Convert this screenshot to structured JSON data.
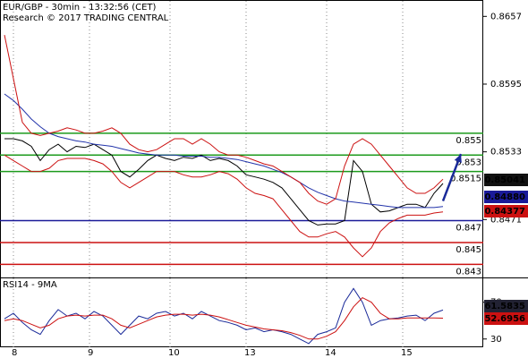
{
  "chart_data": [
    {
      "type": "line",
      "title": "EUR/GBP - 30min - 13:32:56 (CET)",
      "subtitle": "Research © 2017 TRADING CENTRAL",
      "x": [
        -2,
        0,
        2,
        4,
        6,
        8,
        10,
        12,
        14,
        16,
        18,
        20,
        22,
        24,
        26,
        28,
        30,
        32,
        34,
        36,
        38,
        40,
        42,
        44,
        46,
        48,
        50,
        52,
        54,
        56,
        58,
        60,
        62,
        64,
        66,
        68,
        70,
        72,
        74,
        76,
        78,
        80,
        82,
        84,
        86,
        88,
        90,
        92,
        94,
        96
      ],
      "xlim": [
        -3,
        105
      ],
      "xticks": [
        {
          "value": 0,
          "label": "8"
        },
        {
          "value": 17,
          "label": "9"
        },
        {
          "value": 35,
          "label": "10"
        },
        {
          "value": 52,
          "label": "13"
        },
        {
          "value": 70,
          "label": "14"
        },
        {
          "value": 87,
          "label": "15"
        }
      ],
      "ylim": [
        0.8418,
        0.8672
      ],
      "yticks": [
        0.8657,
        0.8595,
        0.8533,
        0.8471
      ],
      "series": [
        {
          "color": "#000000",
          "values": [
            0.8545,
            0.8545,
            0.8543,
            0.8538,
            0.8525,
            0.8535,
            0.854,
            0.8533,
            0.8538,
            0.8537,
            0.854,
            0.8535,
            0.853,
            0.8515,
            0.851,
            0.8517,
            0.8525,
            0.853,
            0.8527,
            0.8525,
            0.8528,
            0.8527,
            0.853,
            0.8525,
            0.8527,
            0.8525,
            0.852,
            0.8512,
            0.851,
            0.8508,
            0.8505,
            0.85,
            0.849,
            0.848,
            0.847,
            0.8466,
            0.8467,
            0.8467,
            0.847,
            0.8525,
            0.8515,
            0.8485,
            0.8478,
            0.8479,
            0.8482,
            0.8485,
            0.8485,
            0.8482,
            0.8495,
            0.8504
          ]
        },
        {
          "color": "#2233aa",
          "values": [
            0.8586,
            0.858,
            0.8572,
            0.8563,
            0.8556,
            0.855,
            0.8547,
            0.8545,
            0.8543,
            0.8542,
            0.854,
            0.8539,
            0.8538,
            0.8536,
            0.8534,
            0.8532,
            0.8531,
            0.853,
            0.853,
            0.853,
            0.8529,
            0.8529,
            0.8529,
            0.8528,
            0.8528,
            0.8527,
            0.8526,
            0.8524,
            0.8522,
            0.852,
            0.8517,
            0.8514,
            0.851,
            0.8505,
            0.85,
            0.8496,
            0.8493,
            0.849,
            0.8488,
            0.8487,
            0.8486,
            0.8485,
            0.8484,
            0.8483,
            0.8482,
            0.8482,
            0.8482,
            0.8482,
            0.8482,
            0.8483
          ]
        },
        {
          "color": "#cc1111",
          "values": [
            0.864,
            0.86,
            0.856,
            0.855,
            0.8548,
            0.855,
            0.8552,
            0.8555,
            0.8553,
            0.855,
            0.855,
            0.8552,
            0.8555,
            0.855,
            0.854,
            0.8535,
            0.8533,
            0.8535,
            0.854,
            0.8545,
            0.8545,
            0.854,
            0.8545,
            0.854,
            0.8533,
            0.853,
            0.853,
            0.8528,
            0.8525,
            0.8522,
            0.852,
            0.8515,
            0.851,
            0.8505,
            0.8495,
            0.8488,
            0.8485,
            0.849,
            0.852,
            0.854,
            0.8545,
            0.854,
            0.853,
            0.852,
            0.851,
            0.85,
            0.8495,
            0.8495,
            0.85,
            0.8508
          ]
        },
        {
          "color": "#cc1111",
          "values": [
            0.853,
            0.8525,
            0.852,
            0.8515,
            0.8515,
            0.8518,
            0.8525,
            0.8527,
            0.8527,
            0.8527,
            0.8525,
            0.8522,
            0.8515,
            0.8505,
            0.85,
            0.8505,
            0.851,
            0.8515,
            0.8515,
            0.8515,
            0.8512,
            0.851,
            0.851,
            0.8512,
            0.8515,
            0.8513,
            0.8508,
            0.85,
            0.8495,
            0.8493,
            0.849,
            0.848,
            0.847,
            0.846,
            0.8455,
            0.8455,
            0.8458,
            0.846,
            0.8455,
            0.8445,
            0.8437,
            0.8445,
            0.846,
            0.8468,
            0.8472,
            0.8475,
            0.8475,
            0.8475,
            0.8477,
            0.8478
          ]
        }
      ],
      "levels": [
        {
          "value": 0.855,
          "color": "#1c9a1c"
        },
        {
          "value": 0.853,
          "color": "#1c9a1c"
        },
        {
          "value": 0.8515,
          "color": "#1c9a1c"
        },
        {
          "value": 0.847,
          "color": "#1a1a99"
        },
        {
          "value": 0.845,
          "color": "#cc1111"
        },
        {
          "value": 0.843,
          "color": "#cc1111"
        }
      ],
      "forecast": {
        "x": [
          96,
          100
        ],
        "values": [
          0.8488,
          0.8531
        ],
        "color": "#1a2a99"
      },
      "price_tags": [
        {
          "label": "0.85041",
          "color": "#111111"
        },
        {
          "label": "0.84880",
          "color": "#1a1a99"
        },
        {
          "label": "0.84377",
          "color": "#cc1111"
        }
      ]
    },
    {
      "type": "line",
      "title": "RSI14 - 9MA",
      "x": [
        -2,
        0,
        2,
        4,
        6,
        8,
        10,
        12,
        14,
        16,
        18,
        20,
        22,
        24,
        26,
        28,
        30,
        32,
        34,
        36,
        38,
        40,
        42,
        44,
        46,
        48,
        50,
        52,
        54,
        56,
        58,
        60,
        62,
        64,
        66,
        68,
        70,
        72,
        74,
        76,
        78,
        80,
        82,
        84,
        86,
        88,
        90,
        92,
        94,
        96
      ],
      "xlim": [
        -3,
        105
      ],
      "ylim": [
        21,
        97
      ],
      "yticks": [
        70,
        30
      ],
      "series": [
        {
          "color": "#1a2a99",
          "values": [
            52,
            58,
            48,
            40,
            35,
            50,
            62,
            55,
            58,
            52,
            60,
            55,
            45,
            35,
            45,
            55,
            52,
            58,
            60,
            55,
            58,
            52,
            60,
            55,
            50,
            48,
            45,
            40,
            42,
            38,
            40,
            38,
            35,
            30,
            25,
            35,
            38,
            42,
            70,
            85,
            70,
            45,
            50,
            52,
            53,
            55,
            56,
            50,
            58,
            61.58
          ]
        },
        {
          "color": "#cc1111",
          "values": [
            50,
            52,
            50,
            46,
            42,
            45,
            52,
            55,
            56,
            55,
            56,
            56,
            52,
            45,
            42,
            46,
            50,
            54,
            56,
            57,
            57,
            56,
            57,
            56,
            54,
            51,
            48,
            45,
            43,
            41,
            40,
            39,
            37,
            34,
            30,
            30,
            33,
            38,
            50,
            65,
            75,
            70,
            58,
            52,
            52,
            53,
            53,
            53,
            53,
            52.7
          ]
        }
      ],
      "price_tags": [
        {
          "label": "61.5835",
          "color": "#222233"
        },
        {
          "label": "52.6956",
          "color": "#cc1111"
        }
      ]
    }
  ]
}
